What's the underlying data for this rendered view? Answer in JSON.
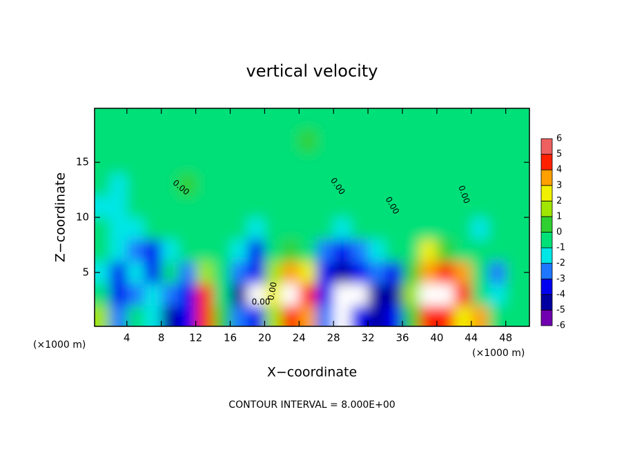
{
  "chart_data": {
    "type": "heatmap",
    "title": "vertical velocity",
    "x_label": "X−coordinate",
    "y_label": "Z−coordinate",
    "x_unit_label": "(×1000 m)",
    "footer": "CONTOUR INTERVAL = 8.000E+00",
    "x": [
      1,
      3,
      5,
      7,
      9,
      11,
      13,
      15,
      17,
      19,
      21,
      23,
      25,
      27,
      29,
      31,
      33,
      35,
      37,
      39,
      41,
      43,
      45,
      47,
      49
    ],
    "y": [
      1,
      3,
      5,
      7,
      9,
      11,
      13,
      15,
      17,
      19
    ],
    "values": [
      [
        2,
        -2,
        0,
        -1,
        -4,
        -3,
        5,
        1,
        -2,
        -3,
        2,
        5,
        4,
        -2,
        7,
        -3,
        -4,
        -3,
        1,
        5,
        5,
        3,
        4,
        0,
        0
      ],
      [
        0,
        -3,
        -2,
        -1,
        -2,
        -3,
        5,
        0,
        -4,
        7,
        3,
        7,
        5,
        -3,
        7,
        7,
        -4,
        -4,
        2,
        7,
        7,
        5,
        0,
        -1,
        0
      ],
      [
        -1,
        -3,
        -1,
        -3,
        0,
        -2,
        2,
        0,
        -2,
        -3,
        2,
        4,
        3,
        -3,
        -4,
        -3,
        -2,
        -3,
        1,
        4,
        5,
        4,
        0,
        -2,
        0
      ],
      [
        0,
        -1,
        -2,
        -3,
        -1,
        0,
        0,
        0,
        -1,
        -3,
        0,
        1,
        0,
        -2,
        -3,
        -2,
        -1,
        0,
        0,
        3,
        1,
        0,
        0,
        0,
        0
      ],
      [
        0,
        -1,
        -1,
        0,
        0,
        0,
        0,
        0,
        0,
        -1,
        0,
        0,
        0,
        0,
        -1,
        0,
        0,
        0,
        0,
        0,
        0,
        0,
        -1,
        0,
        0
      ],
      [
        -1,
        -1,
        0,
        0,
        0,
        0,
        0,
        0,
        0,
        0,
        0,
        0,
        0,
        0,
        0,
        0,
        0,
        0,
        0,
        0,
        0,
        0,
        0,
        0,
        0
      ],
      [
        0,
        -1,
        0,
        0,
        0,
        1,
        0,
        0,
        0,
        0,
        0,
        0,
        0,
        0,
        0,
        0,
        0,
        0,
        0,
        0,
        0,
        0,
        0,
        0,
        0
      ],
      [
        0,
        0,
        0,
        0,
        0,
        0,
        0,
        0,
        0,
        0,
        0,
        0,
        0,
        0,
        0,
        0,
        0,
        0,
        0,
        0,
        0,
        0,
        0,
        0,
        0
      ],
      [
        0,
        0,
        0,
        0,
        0,
        0,
        0,
        0,
        0,
        0,
        0,
        0,
        1,
        0,
        0,
        0,
        0,
        0,
        0,
        0,
        0,
        0,
        0,
        0,
        0
      ],
      [
        0,
        0,
        0,
        0,
        0,
        0,
        0,
        0,
        0,
        0,
        0,
        0,
        0,
        0,
        0,
        0,
        0,
        0,
        0,
        0,
        0,
        0,
        0,
        0,
        0
      ]
    ],
    "xlim": [
      0.25,
      50.75
    ],
    "ylim": [
      0.1,
      19.9
    ],
    "xticks": [
      4,
      8,
      12,
      16,
      20,
      24,
      28,
      32,
      36,
      40,
      44,
      48
    ],
    "yticks": [
      5,
      10,
      15
    ],
    "colorbar_ticks": [
      -6,
      -5,
      -4,
      -3,
      -2,
      -1,
      0,
      1,
      2,
      3,
      4,
      5,
      6
    ],
    "colorscale": [
      "#7000b0",
      "#0000a0",
      "#0000f0",
      "#1e78ff",
      "#00e6e6",
      "#00e078",
      "#30d030",
      "#a0e600",
      "#f0f000",
      "#ffa000",
      "#ff2000",
      "#ee6060"
    ],
    "above_color": "#ffffff",
    "contour_labels": [
      {
        "value": 0,
        "label": "0.00"
      },
      {
        "value": 0,
        "label": "0.00"
      },
      {
        "value": 0,
        "label": "0.00"
      },
      {
        "value": 0,
        "label": "0.00"
      },
      {
        "value": 0,
        "label": "0.00"
      },
      {
        "value": 0,
        "label": "0.00"
      }
    ]
  }
}
